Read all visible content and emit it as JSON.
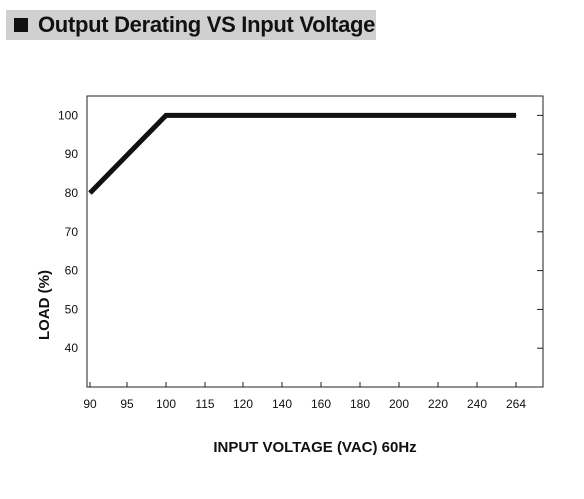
{
  "header": {
    "title": "Output Derating VS Input Voltage"
  },
  "chart_data": {
    "type": "line",
    "title": "Output Derating VS Input Voltage",
    "xlabel": "INPUT VOLTAGE (VAC) 60Hz",
    "ylabel": "LOAD (%)",
    "x_categories": [
      "90",
      "95",
      "100",
      "115",
      "120",
      "140",
      "160",
      "180",
      "200",
      "220",
      "240",
      "264"
    ],
    "y_ticks": [
      40,
      50,
      60,
      70,
      80,
      90,
      100
    ],
    "ylim": [
      30,
      105
    ],
    "grid": false,
    "series": [
      {
        "x": [
          "90",
          "100",
          "264"
        ],
        "values": [
          80,
          100,
          100
        ]
      }
    ],
    "line_color": "#111111"
  }
}
